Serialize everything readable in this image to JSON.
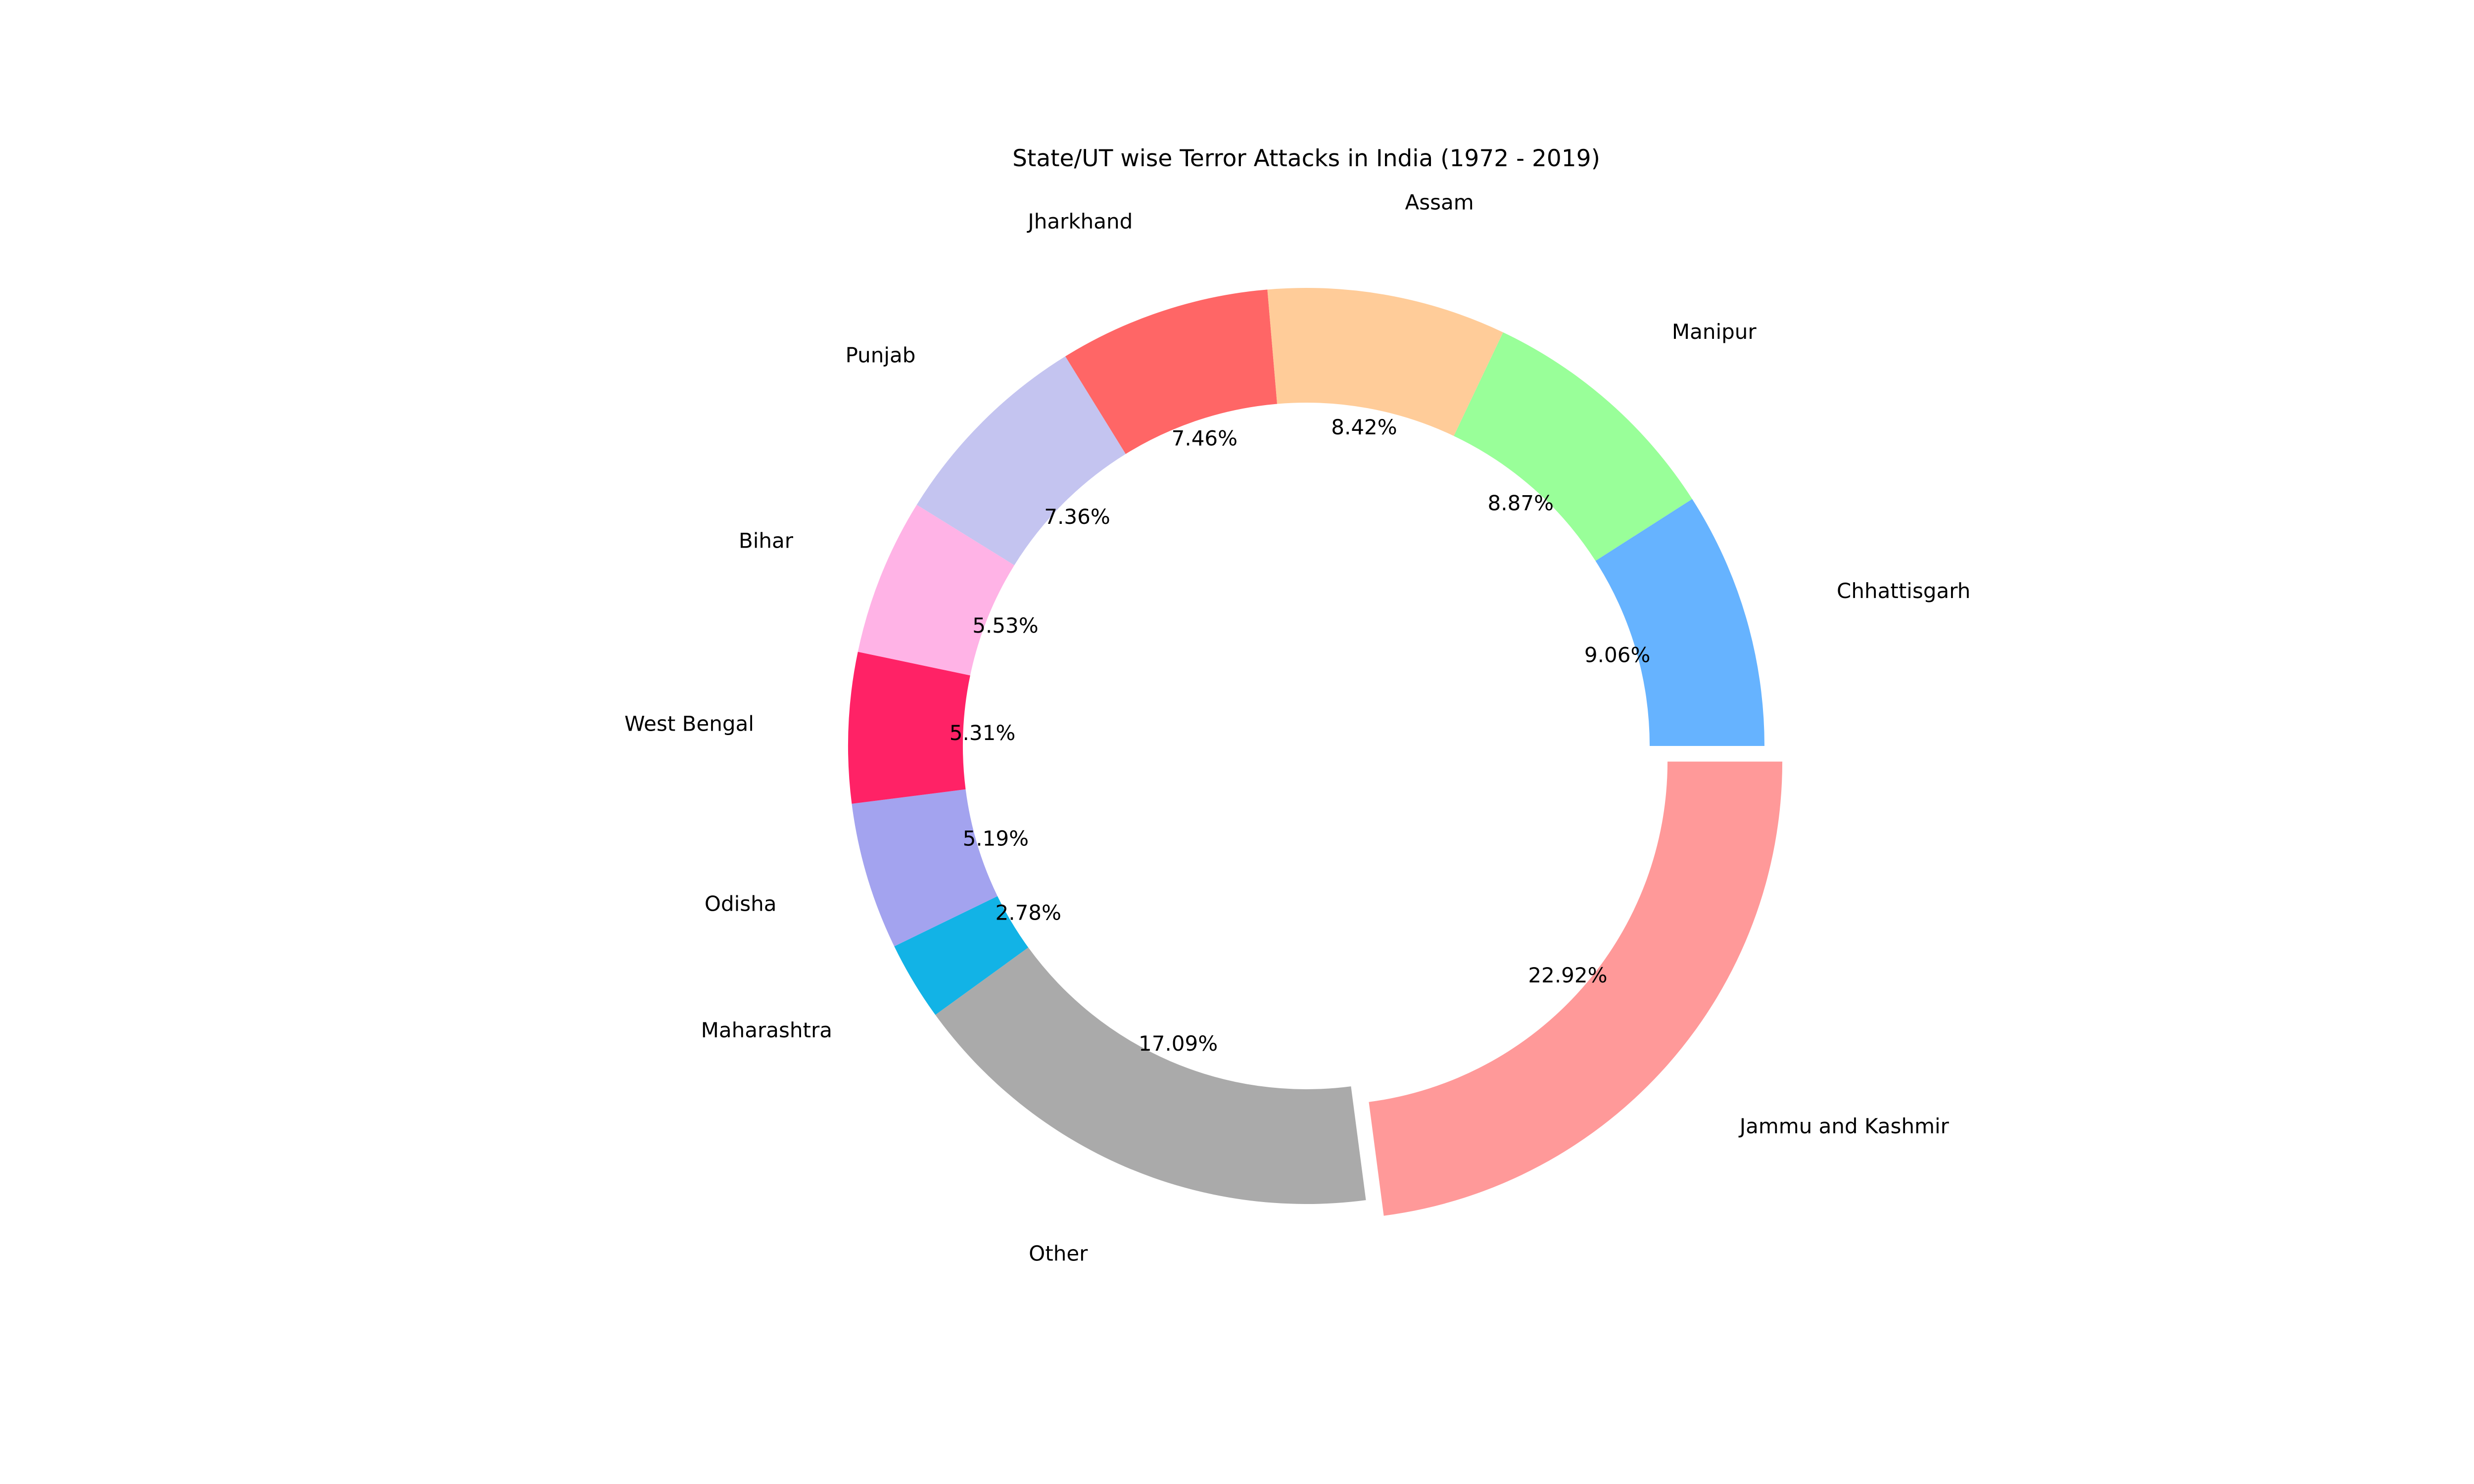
{
  "chart_data": {
    "type": "pie",
    "donut": true,
    "title": "State/UT wise Terror Attacks in India (1972 - 2019)",
    "legend": "none",
    "slices": [
      {
        "label": "Jammu and Kashmir",
        "value": 22.92,
        "pct_label": "22.92%",
        "color": "#ff9999",
        "exploded": true
      },
      {
        "label": "Other",
        "value": 17.09,
        "pct_label": "17.09%",
        "color": "#aaaaaa",
        "exploded": false
      },
      {
        "label": "Maharashtra",
        "value": 2.78,
        "pct_label": "2.78%",
        "color": "#12b3e6",
        "exploded": false
      },
      {
        "label": "Odisha",
        "value": 5.19,
        "pct_label": "5.19%",
        "color": "#a3a3ef",
        "exploded": false
      },
      {
        "label": "West Bengal",
        "value": 5.31,
        "pct_label": "5.31%",
        "color": "#ff2266",
        "exploded": false
      },
      {
        "label": "Bihar",
        "value": 5.53,
        "pct_label": "5.53%",
        "color": "#ffb3e6",
        "exploded": false
      },
      {
        "label": "Punjab",
        "value": 7.36,
        "pct_label": "7.36%",
        "color": "#c4c4f0",
        "exploded": false
      },
      {
        "label": "Jharkhand",
        "value": 7.46,
        "pct_label": "7.46%",
        "color": "#ff6666",
        "exploded": false
      },
      {
        "label": "Assam",
        "value": 8.42,
        "pct_label": "8.42%",
        "color": "#ffcc99",
        "exploded": false
      },
      {
        "label": "Manipur",
        "value": 8.87,
        "pct_label": "8.87%",
        "color": "#99ff99",
        "exploded": false
      },
      {
        "label": "Chhattisgarh",
        "value": 9.06,
        "pct_label": "9.06%",
        "color": "#66b3ff",
        "exploded": false
      }
    ]
  }
}
